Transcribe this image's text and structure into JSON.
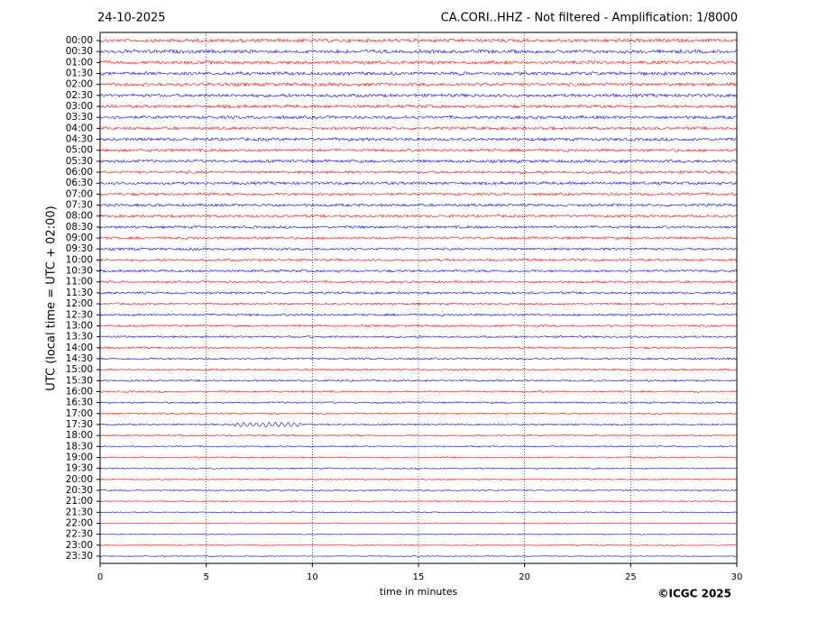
{
  "chart_data": {
    "type": "helicorder",
    "date": "24-10-2025",
    "title": "CA.CORI..HHZ - Not filtered - Amplification: 1/8000",
    "ylabel": "UTC (local time = UTC + 02:00)",
    "xlabel": "time in minutes",
    "copyright": "©ICGC 2025",
    "categories": [
      "00:00",
      "00:30",
      "01:00",
      "01:30",
      "02:00",
      "02:30",
      "03:00",
      "03:30",
      "04:00",
      "04:30",
      "05:00",
      "05:30",
      "06:00",
      "06:30",
      "07:00",
      "07:30",
      "08:00",
      "08:30",
      "09:00",
      "09:30",
      "10:00",
      "10:30",
      "11:00",
      "11:30",
      "12:00",
      "12:30",
      "13:00",
      "13:30",
      "14:00",
      "14:30",
      "15:00",
      "15:30",
      "16:00",
      "16:30",
      "17:00",
      "17:30",
      "18:00",
      "18:30",
      "19:00",
      "19:30",
      "20:00",
      "20:30",
      "21:00",
      "21:30",
      "22:00",
      "22:30",
      "23:00",
      "23:30"
    ],
    "colors": [
      "#ff0000",
      "#0000ff"
    ],
    "xlim": [
      0,
      30
    ],
    "xticks": [
      0,
      5,
      10,
      15,
      20,
      25,
      30
    ],
    "grid": true
  }
}
